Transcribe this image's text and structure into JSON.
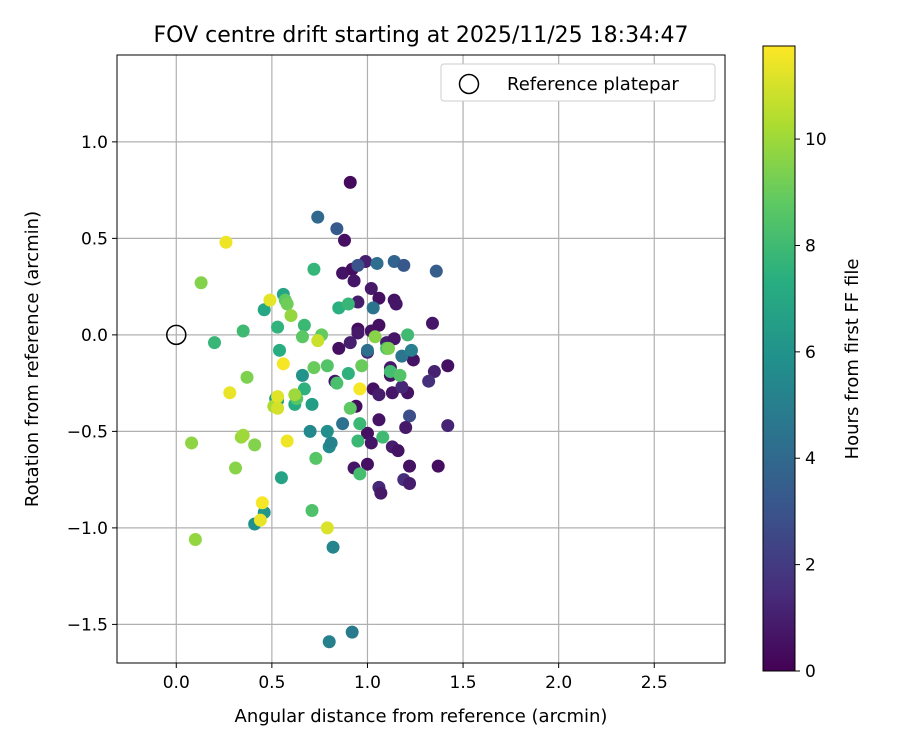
{
  "chart_data": {
    "type": "scatter",
    "title": "FOV centre drift starting at 2025/11/25 18:34:47",
    "xlabel": "Angular distance from reference (arcmin)",
    "ylabel": "Rotation from reference (arcmin)",
    "xlim": [
      -0.31,
      2.87
    ],
    "ylim": [
      -1.7,
      1.45
    ],
    "xticks": [
      0.0,
      0.5,
      1.0,
      1.5,
      2.0,
      2.5
    ],
    "xtick_labels": [
      "0.0",
      "0.5",
      "1.0",
      "1.5",
      "2.0",
      "2.5"
    ],
    "yticks": [
      1.0,
      0.5,
      0.0,
      -0.5,
      -1.0,
      -1.5
    ],
    "ytick_labels": [
      "1.0",
      "0.5",
      "0.0",
      "−0.5",
      "−1.0",
      "−1.5"
    ],
    "grid": true,
    "legend": {
      "position": "top-right",
      "entries": [
        {
          "label": "Reference platepar",
          "marker": "open-circle"
        }
      ]
    },
    "reference_point": {
      "x": 0.0,
      "y": 0.0
    },
    "colorbar": {
      "label": "Hours from first FF file",
      "range": [
        0,
        11.75
      ],
      "ticks": [
        0,
        2,
        4,
        6,
        8,
        10
      ],
      "tick_labels": [
        "0",
        "2",
        "4",
        "6",
        "8",
        "10"
      ],
      "colormap": "viridis",
      "stops": [
        "#440154",
        "#472d7b",
        "#3b528b",
        "#2c728e",
        "#21918c",
        "#28ae80",
        "#5ec962",
        "#addc30",
        "#fde725"
      ]
    },
    "points": [
      {
        "x": 0.91,
        "y": 0.79,
        "t": 0.3
      },
      {
        "x": 0.88,
        "y": 0.49,
        "t": 0.5
      },
      {
        "x": 0.87,
        "y": 0.32,
        "t": 0.6
      },
      {
        "x": 0.92,
        "y": 0.34,
        "t": 0.4
      },
      {
        "x": 0.93,
        "y": 0.28,
        "t": 0.7
      },
      {
        "x": 0.99,
        "y": 0.38,
        "t": 1.0
      },
      {
        "x": 1.02,
        "y": 0.24,
        "t": 0.8
      },
      {
        "x": 1.06,
        "y": 0.19,
        "t": 0.5
      },
      {
        "x": 0.95,
        "y": 0.17,
        "t": 0.9
      },
      {
        "x": 1.14,
        "y": 0.18,
        "t": 0.6
      },
      {
        "x": 1.15,
        "y": 0.16,
        "t": 0.7
      },
      {
        "x": 0.95,
        "y": 0.03,
        "t": 0.4
      },
      {
        "x": 0.95,
        "y": 0.01,
        "t": 0.8
      },
      {
        "x": 1.02,
        "y": 0.02,
        "t": 0.6
      },
      {
        "x": 1.06,
        "y": 0.05,
        "t": 0.5
      },
      {
        "x": 1.1,
        "y": -0.04,
        "t": 0.9
      },
      {
        "x": 1.14,
        "y": -0.02,
        "t": 0.7
      },
      {
        "x": 1.24,
        "y": -0.13,
        "t": 0.6
      },
      {
        "x": 0.91,
        "y": -0.04,
        "t": 1.0
      },
      {
        "x": 0.85,
        "y": -0.07,
        "t": 0.5
      },
      {
        "x": 1.0,
        "y": -0.09,
        "t": 1.2
      },
      {
        "x": 1.12,
        "y": -0.17,
        "t": 0.8
      },
      {
        "x": 1.12,
        "y": -0.21,
        "t": 0.6
      },
      {
        "x": 0.83,
        "y": -0.24,
        "t": 0.7
      },
      {
        "x": 1.03,
        "y": -0.28,
        "t": 0.5
      },
      {
        "x": 1.06,
        "y": -0.31,
        "t": 0.9
      },
      {
        "x": 1.13,
        "y": -0.3,
        "t": 0.7
      },
      {
        "x": 1.21,
        "y": -0.3,
        "t": 0.6
      },
      {
        "x": 1.18,
        "y": -0.27,
        "t": 1.3
      },
      {
        "x": 1.35,
        "y": -0.19,
        "t": 1.1
      },
      {
        "x": 1.42,
        "y": -0.16,
        "t": 0.5
      },
      {
        "x": 1.32,
        "y": -0.24,
        "t": 1.6
      },
      {
        "x": 1.22,
        "y": -0.42,
        "t": 2.8
      },
      {
        "x": 0.94,
        "y": -0.37,
        "t": 0.4
      },
      {
        "x": 1.2,
        "y": -0.48,
        "t": 0.8
      },
      {
        "x": 1.06,
        "y": -0.44,
        "t": 0.6
      },
      {
        "x": 1.0,
        "y": -0.51,
        "t": 0.5
      },
      {
        "x": 1.02,
        "y": -0.56,
        "t": 0.7
      },
      {
        "x": 1.13,
        "y": -0.58,
        "t": 0.9
      },
      {
        "x": 1.16,
        "y": -0.6,
        "t": 0.6
      },
      {
        "x": 0.93,
        "y": -0.69,
        "t": 0.7
      },
      {
        "x": 1.0,
        "y": -0.67,
        "t": 0.5
      },
      {
        "x": 1.22,
        "y": -0.68,
        "t": 0.6
      },
      {
        "x": 1.37,
        "y": -0.68,
        "t": 0.4
      },
      {
        "x": 1.06,
        "y": -0.79,
        "t": 1.3
      },
      {
        "x": 1.07,
        "y": -0.82,
        "t": 0.8
      },
      {
        "x": 1.19,
        "y": -0.75,
        "t": 1.5
      },
      {
        "x": 1.22,
        "y": -0.77,
        "t": 0.9
      },
      {
        "x": 1.42,
        "y": -0.47,
        "t": 1.2
      },
      {
        "x": 1.34,
        "y": 0.06,
        "t": 0.7
      },
      {
        "x": 1.36,
        "y": 0.33,
        "t": 3.5
      },
      {
        "x": 1.14,
        "y": 0.38,
        "t": 3.8
      },
      {
        "x": 1.19,
        "y": 0.36,
        "t": 3.2
      },
      {
        "x": 1.05,
        "y": 0.37,
        "t": 4.2
      },
      {
        "x": 0.95,
        "y": 0.36,
        "t": 3.0
      },
      {
        "x": 0.84,
        "y": 0.55,
        "t": 3.3
      },
      {
        "x": 0.74,
        "y": 0.61,
        "t": 4.0
      },
      {
        "x": 1.03,
        "y": 0.14,
        "t": 4.5
      },
      {
        "x": 1.0,
        "y": -0.08,
        "t": 4.3
      },
      {
        "x": 1.18,
        "y": -0.11,
        "t": 4.6
      },
      {
        "x": 1.23,
        "y": -0.08,
        "t": 5.0
      },
      {
        "x": 0.87,
        "y": -0.46,
        "t": 4.4
      },
      {
        "x": 0.92,
        "y": -1.54,
        "t": 4.8
      },
      {
        "x": 0.8,
        "y": -1.59,
        "t": 5.1
      },
      {
        "x": 0.82,
        "y": -1.1,
        "t": 5.3
      },
      {
        "x": 0.8,
        "y": -0.58,
        "t": 5.6
      },
      {
        "x": 0.81,
        "y": -0.56,
        "t": 5.2
      },
      {
        "x": 0.79,
        "y": -0.5,
        "t": 5.8
      },
      {
        "x": 0.7,
        "y": -0.5,
        "t": 5.5
      },
      {
        "x": 0.66,
        "y": -0.21,
        "t": 6.0
      },
      {
        "x": 0.71,
        "y": -0.36,
        "t": 6.5
      },
      {
        "x": 0.46,
        "y": -0.92,
        "t": 6.2
      },
      {
        "x": 0.41,
        "y": -0.98,
        "t": 5.9
      },
      {
        "x": 0.55,
        "y": -0.74,
        "t": 6.8
      },
      {
        "x": 0.53,
        "y": -0.34,
        "t": 6.6
      },
      {
        "x": 0.52,
        "y": -0.33,
        "t": 6.4
      },
      {
        "x": 0.56,
        "y": 0.21,
        "t": 6.9
      },
      {
        "x": 0.46,
        "y": 0.13,
        "t": 7.0
      },
      {
        "x": 0.62,
        "y": -0.36,
        "t": 7.2
      },
      {
        "x": 0.67,
        "y": -0.28,
        "t": 7.5
      },
      {
        "x": 0.54,
        "y": -0.08,
        "t": 7.3
      },
      {
        "x": 0.2,
        "y": -0.04,
        "t": 7.8
      },
      {
        "x": 0.35,
        "y": 0.02,
        "t": 8.0
      },
      {
        "x": 0.53,
        "y": 0.04,
        "t": 7.6
      },
      {
        "x": 0.67,
        "y": 0.05,
        "t": 7.9
      },
      {
        "x": 0.72,
        "y": 0.34,
        "t": 7.7
      },
      {
        "x": 0.85,
        "y": 0.14,
        "t": 7.4
      },
      {
        "x": 0.9,
        "y": 0.16,
        "t": 7.8
      },
      {
        "x": 0.96,
        "y": -0.46,
        "t": 7.9
      },
      {
        "x": 0.9,
        "y": -0.2,
        "t": 7.5
      },
      {
        "x": 0.95,
        "y": -0.55,
        "t": 7.9
      },
      {
        "x": 0.96,
        "y": -0.72,
        "t": 8.2
      },
      {
        "x": 1.08,
        "y": -0.53,
        "t": 8.0
      },
      {
        "x": 1.1,
        "y": -0.07,
        "t": 8.3
      },
      {
        "x": 1.12,
        "y": -0.19,
        "t": 8.1
      },
      {
        "x": 1.17,
        "y": -0.21,
        "t": 8.5
      },
      {
        "x": 1.21,
        "y": 0.0,
        "t": 8.0
      },
      {
        "x": 0.71,
        "y": -0.91,
        "t": 8.4
      },
      {
        "x": 0.73,
        "y": -0.64,
        "t": 8.6
      },
      {
        "x": 0.91,
        "y": -0.38,
        "t": 8.8
      },
      {
        "x": 0.84,
        "y": -0.25,
        "t": 8.3
      },
      {
        "x": 0.63,
        "y": -0.33,
        "t": 8.6
      },
      {
        "x": 0.66,
        "y": -0.01,
        "t": 8.7
      },
      {
        "x": 0.76,
        "y": 0.0,
        "t": 8.9
      },
      {
        "x": 0.79,
        "y": -0.16,
        "t": 8.5
      },
      {
        "x": 0.72,
        "y": -0.17,
        "t": 9.0
      },
      {
        "x": 0.57,
        "y": 0.18,
        "t": 8.8
      },
      {
        "x": 0.58,
        "y": 0.16,
        "t": 9.1
      },
      {
        "x": 0.74,
        "y": -0.03,
        "t": 10.8
      },
      {
        "x": 0.96,
        "y": -0.28,
        "t": 11.6
      },
      {
        "x": 0.97,
        "y": -0.16,
        "t": 9.0
      },
      {
        "x": 1.04,
        "y": -0.01,
        "t": 9.6
      },
      {
        "x": 1.11,
        "y": -0.07,
        "t": 9.3
      },
      {
        "x": 0.37,
        "y": -0.22,
        "t": 9.4
      },
      {
        "x": 0.13,
        "y": 0.27,
        "t": 9.5
      },
      {
        "x": 0.08,
        "y": -0.56,
        "t": 9.7
      },
      {
        "x": 0.1,
        "y": -1.06,
        "t": 9.8
      },
      {
        "x": 0.34,
        "y": -0.53,
        "t": 9.9
      },
      {
        "x": 0.35,
        "y": -0.52,
        "t": 10.0
      },
      {
        "x": 0.31,
        "y": -0.69,
        "t": 9.6
      },
      {
        "x": 0.41,
        "y": -0.57,
        "t": 9.5
      },
      {
        "x": 0.51,
        "y": -0.37,
        "t": 10.2
      },
      {
        "x": 0.62,
        "y": -0.31,
        "t": 10.0
      },
      {
        "x": 0.6,
        "y": 0.1,
        "t": 9.8
      },
      {
        "x": 0.26,
        "y": 0.48,
        "t": 11.5
      },
      {
        "x": 0.49,
        "y": 0.18,
        "t": 11.3
      },
      {
        "x": 0.28,
        "y": -0.3,
        "t": 11.4
      },
      {
        "x": 0.56,
        "y": -0.15,
        "t": 11.6
      },
      {
        "x": 0.53,
        "y": -0.32,
        "t": 11.2
      },
      {
        "x": 0.53,
        "y": -0.38,
        "t": 11.0
      },
      {
        "x": 0.58,
        "y": -0.55,
        "t": 11.5
      },
      {
        "x": 0.45,
        "y": -0.87,
        "t": 11.6
      },
      {
        "x": 0.44,
        "y": -0.96,
        "t": 11.4
      },
      {
        "x": 0.79,
        "y": -1.0,
        "t": 11.1
      }
    ]
  }
}
